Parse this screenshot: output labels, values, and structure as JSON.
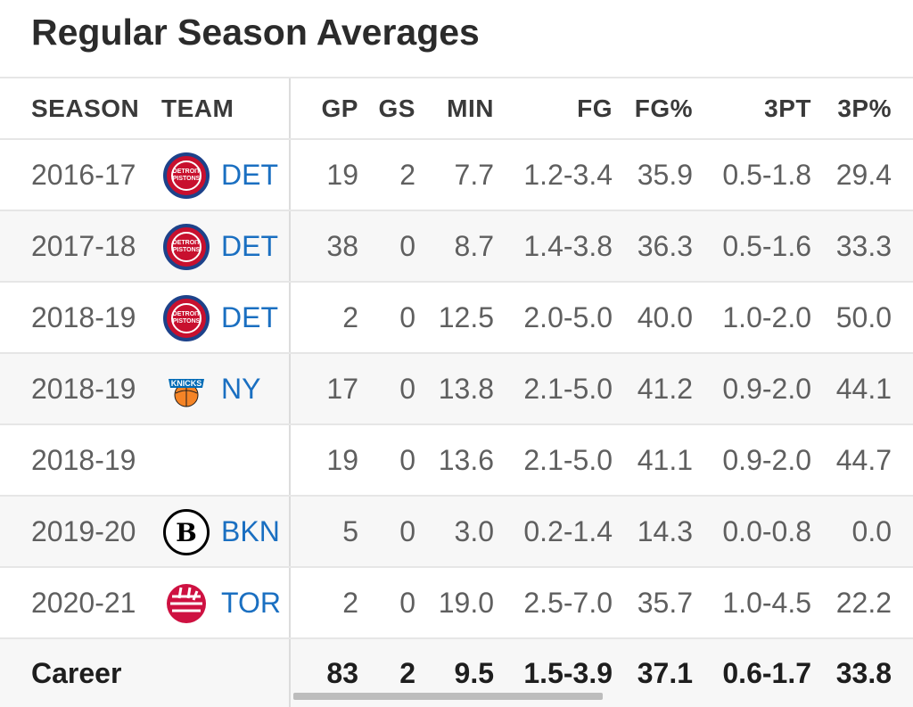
{
  "title": "Regular Season Averages",
  "columns": {
    "season": "SEASON",
    "team": "TEAM",
    "gp": "GP",
    "gs": "GS",
    "min": "MIN",
    "fg": "FG",
    "fgp": "FG%",
    "tpt": "3PT",
    "tpp": "3P%"
  },
  "rows": [
    {
      "season": "2016-17",
      "team": "DET",
      "logo": "pistons-logo",
      "gp": "19",
      "gs": "2",
      "min": "7.7",
      "fg": "1.2-3.4",
      "fgp": "35.9",
      "tpt": "0.5-1.8",
      "tpp": "29.4"
    },
    {
      "season": "2017-18",
      "team": "DET",
      "logo": "pistons-logo",
      "gp": "38",
      "gs": "0",
      "min": "8.7",
      "fg": "1.4-3.8",
      "fgp": "36.3",
      "tpt": "0.5-1.6",
      "tpp": "33.3"
    },
    {
      "season": "2018-19",
      "team": "DET",
      "logo": "pistons-logo",
      "gp": "2",
      "gs": "0",
      "min": "12.5",
      "fg": "2.0-5.0",
      "fgp": "40.0",
      "tpt": "1.0-2.0",
      "tpp": "50.0"
    },
    {
      "season": "2018-19",
      "team": "NY",
      "logo": "knicks-logo",
      "gp": "17",
      "gs": "0",
      "min": "13.8",
      "fg": "2.1-5.0",
      "fgp": "41.2",
      "tpt": "0.9-2.0",
      "tpp": "44.1"
    },
    {
      "season": "2018-19",
      "team": "",
      "logo": "",
      "gp": "19",
      "gs": "0",
      "min": "13.6",
      "fg": "2.1-5.0",
      "fgp": "41.1",
      "tpt": "0.9-2.0",
      "tpp": "44.7"
    },
    {
      "season": "2019-20",
      "team": "BKN",
      "logo": "nets-logo",
      "gp": "5",
      "gs": "0",
      "min": "3.0",
      "fg": "0.2-1.4",
      "fgp": "14.3",
      "tpt": "0.0-0.8",
      "tpp": "0.0"
    },
    {
      "season": "2020-21",
      "team": "TOR",
      "logo": "raptors-logo",
      "gp": "2",
      "gs": "0",
      "min": "19.0",
      "fg": "2.5-7.0",
      "fgp": "35.7",
      "tpt": "1.0-4.5",
      "tpp": "22.2"
    }
  ],
  "career": {
    "label": "Career",
    "gp": "83",
    "gs": "2",
    "min": "9.5",
    "fg": "1.5-3.9",
    "fgp": "37.1",
    "tpt": "0.6-1.7",
    "tpp": "33.8"
  },
  "logo_text": {
    "pistons": "DETROIT PISTONS",
    "nets": "B"
  },
  "colors": {
    "link": "#1a6fc1",
    "pistons_red": "#c8102e",
    "pistons_blue": "#1d428a",
    "knicks_orange": "#f58426",
    "knicks_blue": "#006bb6",
    "raptors_red": "#ce1141"
  }
}
